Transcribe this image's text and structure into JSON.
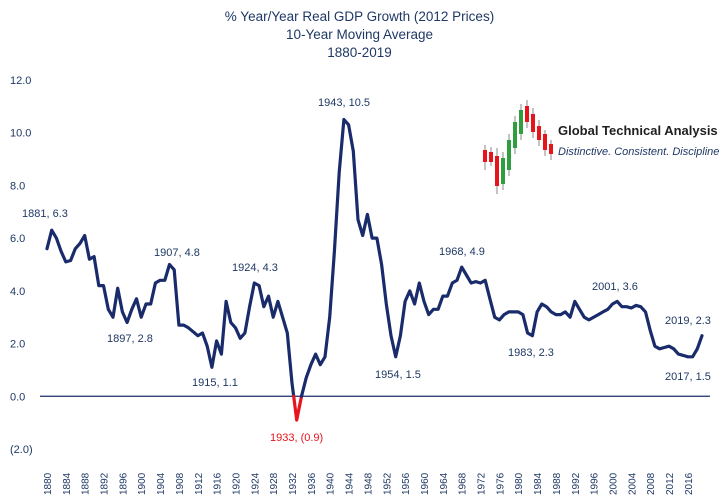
{
  "colors": {
    "line": "#1a2b6b",
    "negative": "#e8141c",
    "text": "#1f3864",
    "candle_green": "#2e9e3e",
    "candle_red": "#e8141c"
  },
  "logo": {
    "title": "Global Technical Analysis",
    "tagline": "Distinctive.  Consistent.  Disciplined."
  },
  "chart_data": {
    "type": "line",
    "title": "% Year/Year Real GDP Growth (2012 Prices)",
    "subtitle": "10-Year Moving Average",
    "subtitle2": "1880-2019",
    "ylim": [
      -2,
      12
    ],
    "yticks": [
      "(2.0)",
      "0.0",
      "2.0",
      "4.0",
      "6.0",
      "8.0",
      "10.0",
      "12.0"
    ],
    "ytick_values": [
      -2,
      0,
      2,
      4,
      6,
      8,
      10,
      12
    ],
    "xticks": [
      "1880",
      "1884",
      "1888",
      "1892",
      "1896",
      "1900",
      "1904",
      "1908",
      "1912",
      "1916",
      "1920",
      "1924",
      "1928",
      "1932",
      "1936",
      "1940",
      "1944",
      "1948",
      "1952",
      "1956",
      "1960",
      "1964",
      "1968",
      "1972",
      "1976",
      "1980",
      "1984",
      "1988",
      "1992",
      "1996",
      "2000",
      "2004",
      "2008",
      "2012",
      "2016"
    ],
    "x": [
      1880,
      1881,
      1882,
      1883,
      1884,
      1885,
      1886,
      1887,
      1888,
      1889,
      1890,
      1891,
      1892,
      1893,
      1894,
      1895,
      1896,
      1897,
      1898,
      1899,
      1900,
      1901,
      1902,
      1903,
      1904,
      1905,
      1906,
      1907,
      1908,
      1909,
      1910,
      1911,
      1912,
      1913,
      1914,
      1915,
      1916,
      1917,
      1918,
      1919,
      1920,
      1921,
      1922,
      1923,
      1924,
      1925,
      1926,
      1927,
      1928,
      1929,
      1930,
      1931,
      1932,
      1933,
      1934,
      1935,
      1936,
      1937,
      1938,
      1939,
      1940,
      1941,
      1942,
      1943,
      1944,
      1945,
      1946,
      1947,
      1948,
      1949,
      1950,
      1951,
      1952,
      1953,
      1954,
      1955,
      1956,
      1957,
      1958,
      1959,
      1960,
      1961,
      1962,
      1963,
      1964,
      1965,
      1966,
      1967,
      1968,
      1969,
      1970,
      1971,
      1972,
      1973,
      1974,
      1975,
      1976,
      1977,
      1978,
      1979,
      1980,
      1981,
      1982,
      1983,
      1984,
      1985,
      1986,
      1987,
      1988,
      1989,
      1990,
      1991,
      1992,
      1993,
      1994,
      1995,
      1996,
      1997,
      1998,
      1999,
      2000,
      2001,
      2002,
      2003,
      2004,
      2005,
      2006,
      2007,
      2008,
      2009,
      2010,
      2011,
      2012,
      2013,
      2014,
      2015,
      2016,
      2017,
      2018,
      2019
    ],
    "values": [
      5.6,
      6.3,
      6.0,
      5.5,
      5.1,
      5.15,
      5.6,
      5.8,
      6.1,
      5.2,
      5.3,
      4.2,
      4.2,
      3.3,
      3.0,
      4.1,
      3.2,
      2.8,
      3.3,
      3.7,
      3.0,
      3.5,
      3.5,
      4.3,
      4.4,
      4.4,
      5.0,
      4.8,
      2.7,
      2.7,
      2.6,
      2.45,
      2.3,
      2.4,
      1.9,
      1.1,
      2.1,
      1.6,
      3.6,
      2.8,
      2.6,
      2.2,
      2.4,
      3.4,
      4.3,
      4.2,
      3.4,
      3.8,
      3.0,
      3.6,
      3.0,
      2.4,
      0.5,
      -0.9,
      0.0,
      0.7,
      1.2,
      1.6,
      1.2,
      1.5,
      3.0,
      5.5,
      8.5,
      10.5,
      10.3,
      9.3,
      6.7,
      6.1,
      6.9,
      6.0,
      6.0,
      5.0,
      3.5,
      2.3,
      1.5,
      2.3,
      3.6,
      4.0,
      3.5,
      4.3,
      3.6,
      3.1,
      3.3,
      3.3,
      3.8,
      3.8,
      4.3,
      4.4,
      4.9,
      4.6,
      4.3,
      4.35,
      4.3,
      4.4,
      3.7,
      3.0,
      2.9,
      3.1,
      3.2,
      3.2,
      3.2,
      3.1,
      2.4,
      2.3,
      3.2,
      3.5,
      3.4,
      3.2,
      3.1,
      3.1,
      3.2,
      3.0,
      3.6,
      3.3,
      3.0,
      2.9,
      3.0,
      3.1,
      3.2,
      3.3,
      3.5,
      3.6,
      3.4,
      3.4,
      3.35,
      3.45,
      3.4,
      3.2,
      2.5,
      1.9,
      1.8,
      1.85,
      1.9,
      1.8,
      1.6,
      1.55,
      1.5,
      1.5,
      1.8,
      2.3
    ],
    "annotations": [
      {
        "text": "1881, 6.3"
      },
      {
        "text": "1897, 2.8"
      },
      {
        "text": "1907, 4.8"
      },
      {
        "text": "1915, 1.1"
      },
      {
        "text": "1924, 4.3"
      },
      {
        "text": "1933, (0.9)"
      },
      {
        "text": "1943, 10.5"
      },
      {
        "text": "1954, 1.5"
      },
      {
        "text": "1968, 4.9"
      },
      {
        "text": "1983, 2.3"
      },
      {
        "text": "2001, 3.6"
      },
      {
        "text": "2019, 2.3"
      },
      {
        "text": "2017, 1.5"
      }
    ]
  }
}
